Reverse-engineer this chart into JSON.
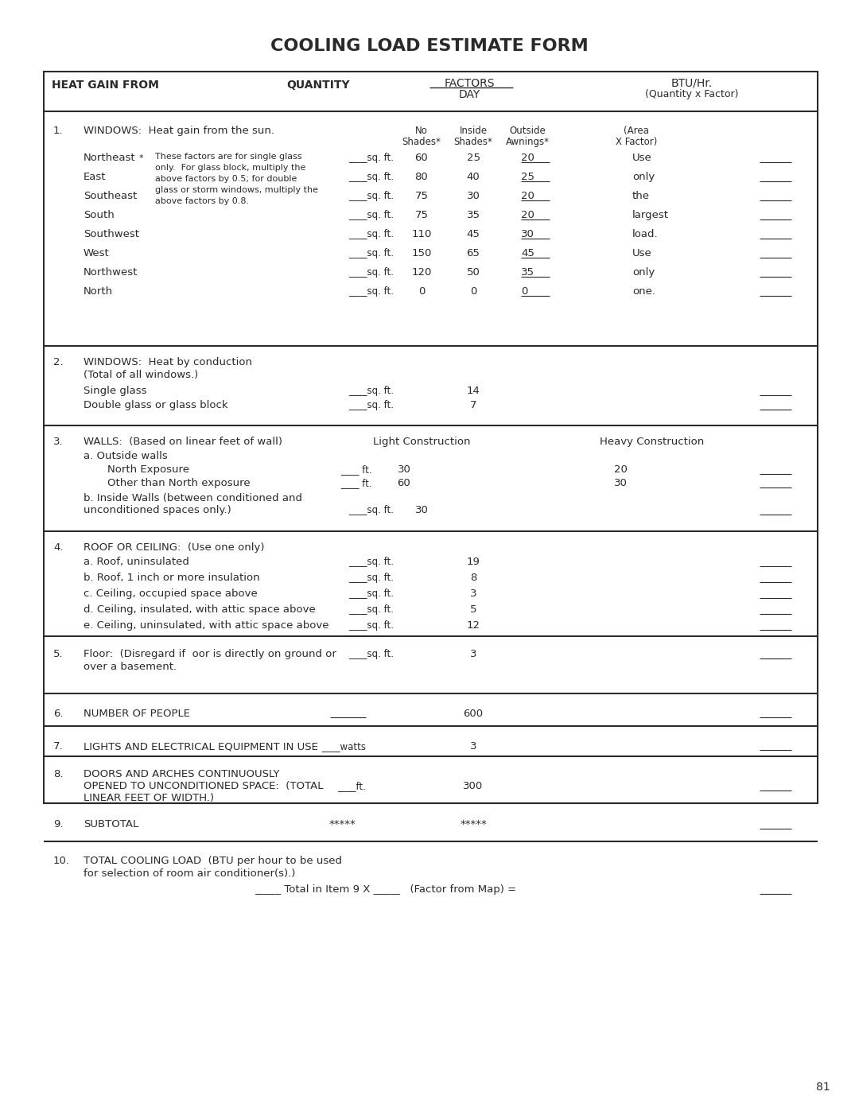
{
  "title": "COOLING LOAD ESTIMATE FORM",
  "bg_color": "#ffffff",
  "text_color": "#2a2a2a",
  "border_color": "#2a2a2a",
  "header": {
    "heat_gain_from": "HEAT GAIN FROM",
    "quantity": "QUANTITY",
    "factors": "FACTORS",
    "day": "DAY",
    "btu_hr": "BTU/Hr.",
    "qty_x_factor": "(Quantity x Factor)"
  },
  "section1": {
    "num": "1.",
    "title": "WINDOWS:  Heat gain from the sun.",
    "note_star": "*",
    "note_lines": [
      "These factors are for single glass",
      "only.  For glass block, multiply the",
      "above factors by 0.5; for double",
      "glass or storm windows, multiply the",
      "above factors by 0.8."
    ],
    "col_headers_line1": [
      "No",
      "Inside",
      "Outside",
      "(Area"
    ],
    "col_headers_line2": [
      "Shades*",
      "Shades*",
      "Awnings*",
      "X Factor)"
    ],
    "directions": [
      "Northeast",
      "East",
      "Southeast",
      "South",
      "Southwest",
      "West",
      "Northwest",
      "North"
    ],
    "no_shades": [
      60,
      80,
      75,
      75,
      110,
      150,
      120,
      0
    ],
    "inside_shades": [
      25,
      40,
      30,
      35,
      45,
      65,
      50,
      0
    ],
    "outside_awnings": [
      20,
      25,
      20,
      20,
      30,
      45,
      35,
      0
    ],
    "area_labels": [
      "Use",
      "only",
      "the",
      "largest",
      "load.",
      "Use",
      "only",
      "one."
    ]
  },
  "section2": {
    "num": "2.",
    "title": "WINDOWS:  Heat by conduction",
    "sub1": "(Total of all windows.)",
    "sub2": "Single glass",
    "sub3": "Double glass or glass block",
    "factor_sg": 14,
    "factor_dg": 7
  },
  "section3": {
    "num": "3.",
    "title": "WALLS:  (Based on linear feet of wall)",
    "light_const": "Light Construction",
    "heavy_const": "Heavy Construction",
    "sub_a": "a. Outside walls",
    "sub_a1": "North Exposure",
    "sub_a2": "Other than North exposure",
    "sub_b": "b. Inside Walls (between conditioned and",
    "sub_b2": "unconditioned spaces only.)",
    "light_north": 30,
    "heavy_north": 20,
    "light_other": 60,
    "heavy_other": 30,
    "inside_factor": 30
  },
  "section4": {
    "num": "4.",
    "title": "ROOF OR CEILING:  (Use one only)",
    "items": [
      "a. Roof, uninsulated",
      "b. Roof, 1 inch or more insulation",
      "c. Ceiling, occupied space above",
      "d. Ceiling, insulated, with attic space above",
      "e. Ceiling, uninsulated, with attic space above"
    ],
    "factors": [
      19,
      8,
      3,
      5,
      12
    ]
  },
  "section5": {
    "num": "5.",
    "title1": "Floor:  (Disregard if  oor is directly on ground or",
    "title2": "over a basement.",
    "factor": 3
  },
  "section6": {
    "num": "6.",
    "title": "NUMBER OF PEOPLE",
    "factor": 600
  },
  "section7": {
    "num": "7.",
    "title": "LIGHTS AND ELECTRICAL EQUIPMENT IN USE",
    "unit": "____watts",
    "factor": 3
  },
  "section8": {
    "num": "8.",
    "title1": "DOORS AND ARCHES CONTINUOUSLY",
    "title2": "OPENED TO UNCONDITIONED SPACE:  (TOTAL",
    "title3": "LINEAR FEET OF WIDTH.)",
    "unit": "____ft.",
    "factor": 300
  },
  "section9": {
    "num": "9.",
    "title": "SUBTOTAL",
    "stars": "*****"
  },
  "section10": {
    "num": "10.",
    "title1": "TOTAL COOLING LOAD  (BTU per hour to be used",
    "title2": "for selection of room air conditioner(s).)",
    "formula": "_____ Total in Item 9 X _____   (Factor from Map) ="
  },
  "page_num": "81"
}
